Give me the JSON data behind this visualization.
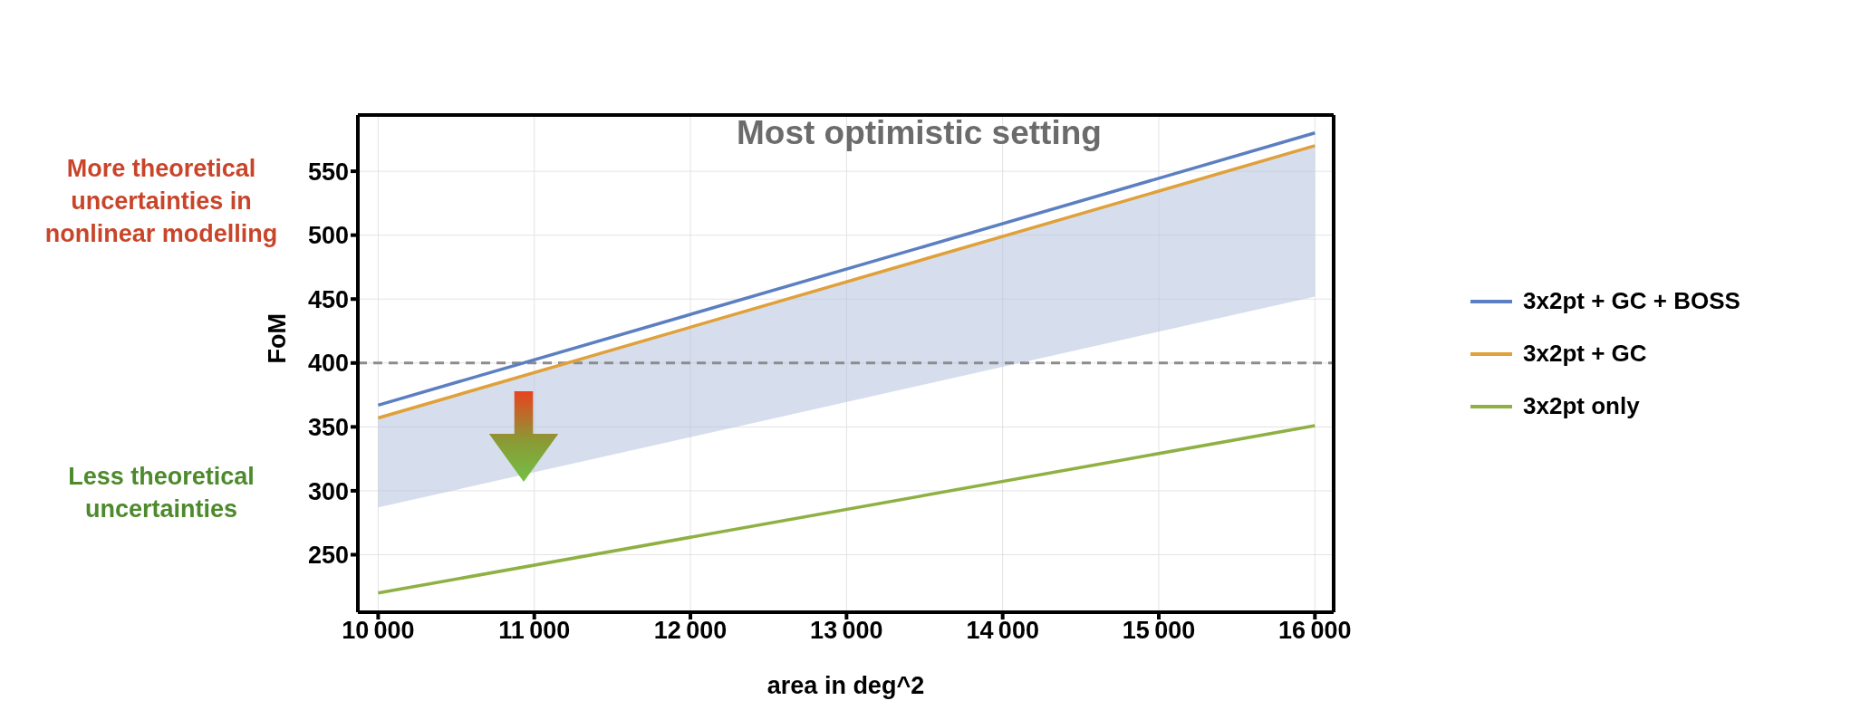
{
  "chart_data": {
    "type": "line",
    "xlabel": "area in deg^2",
    "ylabel": "FoM",
    "x": [
      10000,
      16000
    ],
    "series": [
      {
        "name": "3x2pt + GC + BOSS",
        "color": "#5b7fc0",
        "values": [
          367,
          580
        ]
      },
      {
        "name": "3x2pt + GC",
        "color": "#e0a03a",
        "values": [
          357,
          570
        ],
        "lower": [
          287,
          452
        ],
        "upper": [
          357,
          570
        ]
      },
      {
        "name": "3x2pt only",
        "color": "#8fb043",
        "values": [
          220,
          351
        ]
      }
    ],
    "xlim": [
      9870,
      16120
    ],
    "xticks": [
      10000,
      11000,
      12000,
      13000,
      14000,
      15000,
      16000
    ],
    "ylim": [
      205,
      594
    ],
    "yticks": [
      250,
      300,
      350,
      400,
      450,
      500,
      550
    ],
    "grid": true,
    "legend": "right",
    "marker": "none",
    "line_style": "solid",
    "ref_lines": [
      {
        "axis": "y",
        "value": 400,
        "color": "#8c8c8c",
        "line_style": "dashed"
      }
    ],
    "annotations": [
      "Most optimistic setting",
      "More theoretical uncertainties in nonlinear modelling",
      "Less theoretical uncertainties"
    ]
  }
}
